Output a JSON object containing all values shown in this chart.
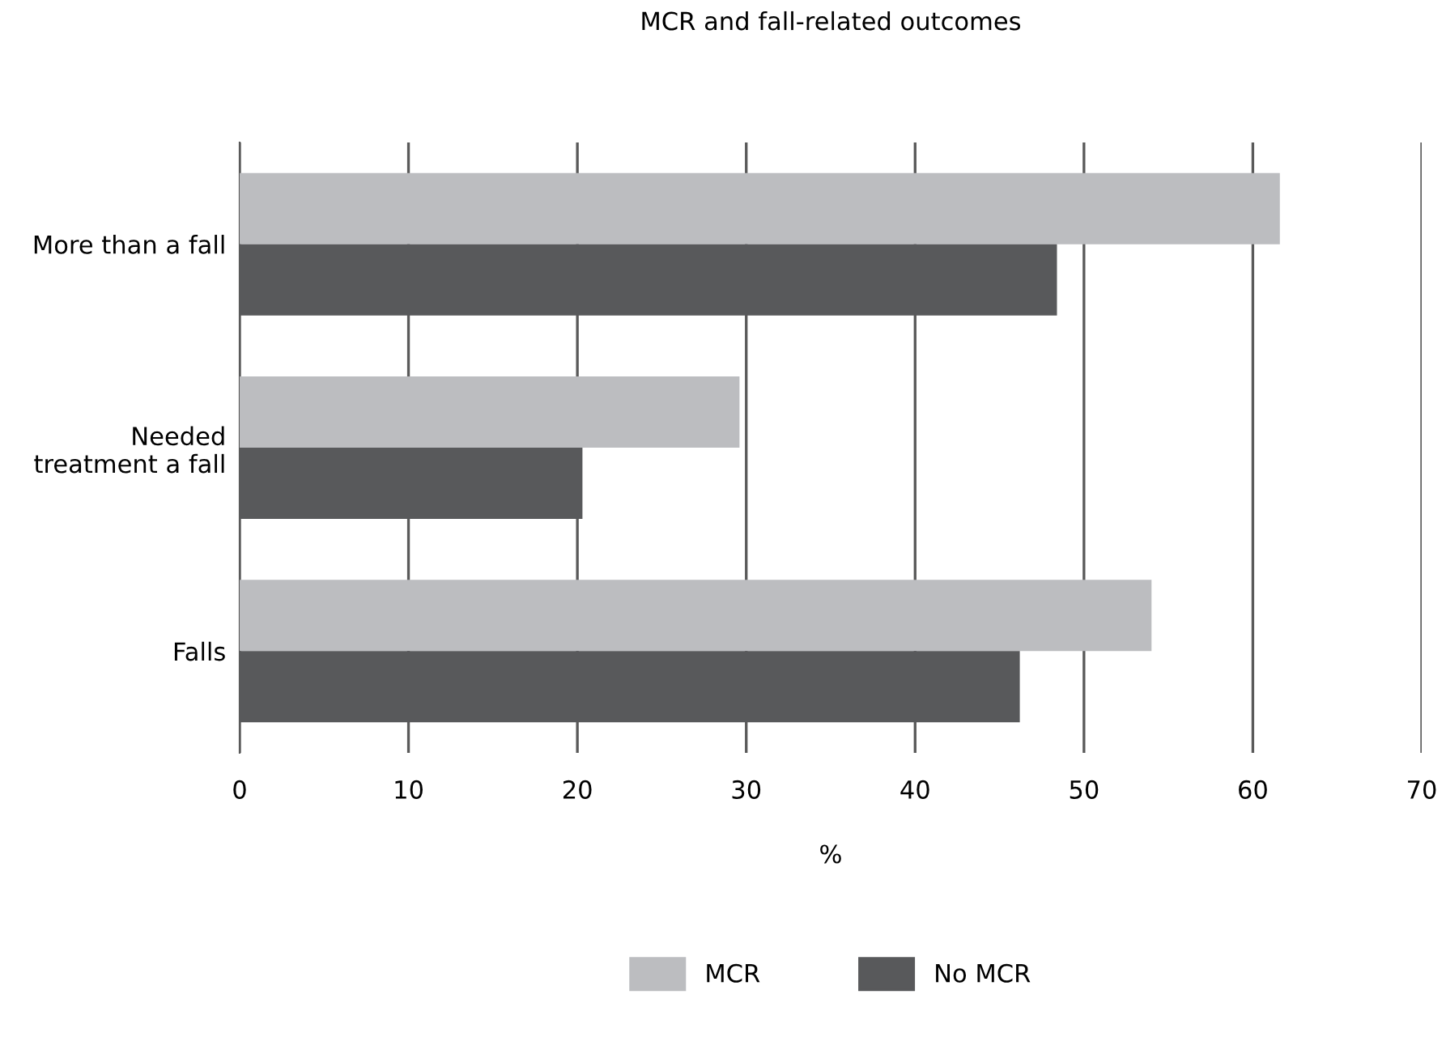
{
  "chart_data": {
    "type": "bar",
    "orientation": "horizontal",
    "title": "MCR and fall-related outcomes",
    "xlabel": "%",
    "categories": [
      "More than a fall",
      "Needed\ntreatment a fall",
      "Falls"
    ],
    "series": [
      {
        "name": "MCR",
        "color": "#bcbdc0",
        "values": [
          61.6,
          29.6,
          54.0
        ]
      },
      {
        "name": "No MCR",
        "color": "#58595b",
        "values": [
          48.4,
          20.3,
          46.2
        ]
      }
    ],
    "xlim": [
      0,
      70
    ],
    "xticks": [
      0,
      10,
      20,
      30,
      40,
      50,
      60,
      70
    ],
    "grid": "x",
    "legend": "bottom"
  }
}
